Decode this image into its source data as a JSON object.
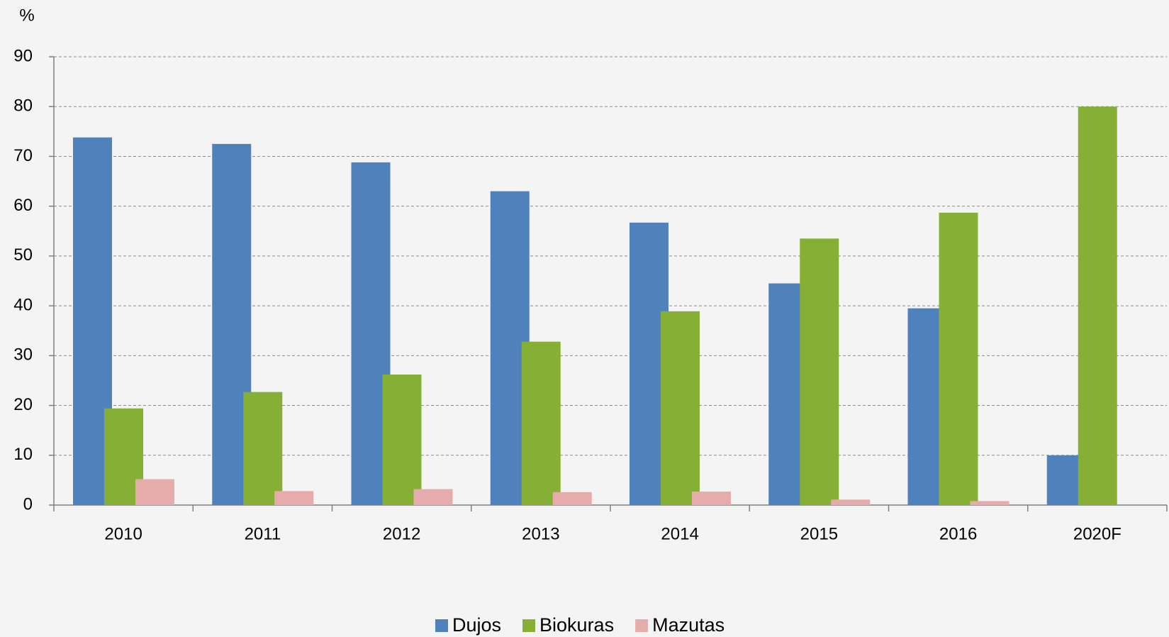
{
  "chart_data": {
    "type": "bar",
    "y_label": "%",
    "categories": [
      "2010",
      "2011",
      "2012",
      "2013",
      "2014",
      "2015",
      "2016",
      "2020F"
    ],
    "series": [
      {
        "name": "Dujos",
        "color": "#4f81bd",
        "values": [
          73.8,
          72.5,
          68.8,
          63,
          56.7,
          44.5,
          39.5,
          10
        ]
      },
      {
        "name": "Biokuras",
        "color": "#86b035",
        "values": [
          19.4,
          22.7,
          26.2,
          32.8,
          38.9,
          53.5,
          58.7,
          80
        ]
      },
      {
        "name": "Mazutas",
        "color": "#e6acac",
        "values": [
          5.2,
          2.8,
          3.2,
          2.6,
          2.7,
          1.1,
          0.8,
          null
        ]
      }
    ],
    "ylim": [
      0,
      90
    ],
    "yticks": [
      0,
      10,
      20,
      30,
      40,
      50,
      60,
      70,
      80,
      90
    ],
    "grid": true,
    "legend": "bottom"
  }
}
